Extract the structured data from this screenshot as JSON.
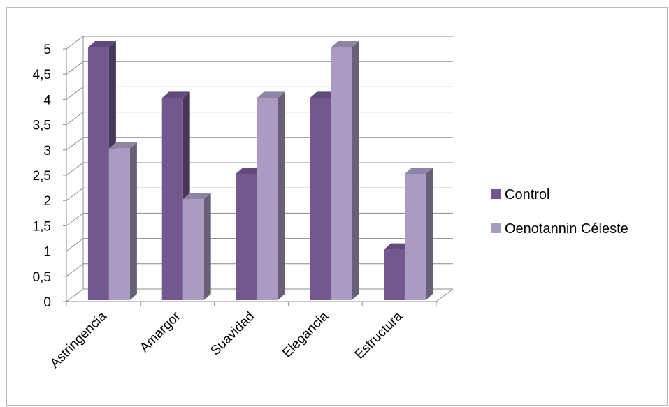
{
  "chart_data": {
    "type": "bar",
    "title": "",
    "xlabel": "",
    "ylabel": "",
    "ylim": [
      0,
      5
    ],
    "yticks": [
      "0",
      "0,5",
      "1",
      "1,5",
      "2",
      "2,5",
      "3",
      "3,5",
      "4",
      "4,5",
      "5"
    ],
    "categories": [
      "Astringencia",
      "Amargor",
      "Suavidad",
      "Elegancia",
      "Estructura"
    ],
    "series": [
      {
        "name": "Control",
        "color": "#73588f",
        "values": [
          5,
          4,
          2.5,
          4,
          1
        ]
      },
      {
        "name": "Oenotannin Céleste",
        "color": "#a99bc1",
        "values": [
          3,
          2,
          4,
          5,
          2.5
        ]
      }
    ],
    "grid": true,
    "legend": "right"
  }
}
